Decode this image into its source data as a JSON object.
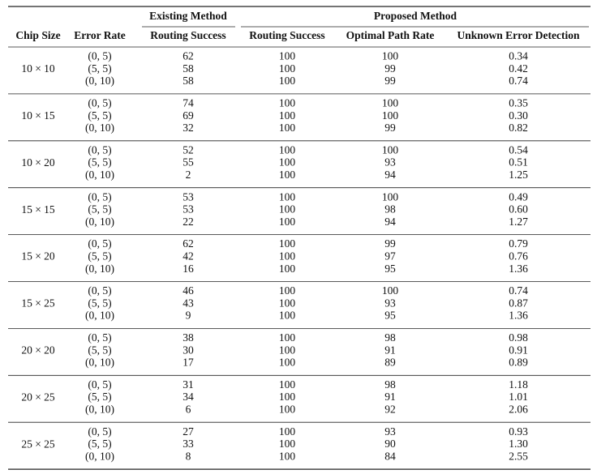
{
  "header": {
    "chip_size": "Chip Size",
    "error_rate": "Error Rate",
    "existing_method": "Existing Method",
    "proposed_method": "Proposed Method",
    "columns": [
      "Routing Success",
      "Routing Success",
      "Optimal Path Rate",
      "Unknown Error Detection"
    ]
  },
  "groups": [
    {
      "chip_size": "10 × 10",
      "rows": [
        [
          "(0, 5)",
          "62",
          "100",
          "100",
          "0.34"
        ],
        [
          "(5, 5)",
          "58",
          "100",
          "99",
          "0.42"
        ],
        [
          "(0, 10)",
          "58",
          "100",
          "99",
          "0.74"
        ]
      ]
    },
    {
      "chip_size": "10 × 15",
      "rows": [
        [
          "(0, 5)",
          "74",
          "100",
          "100",
          "0.35"
        ],
        [
          "(5, 5)",
          "69",
          "100",
          "100",
          "0.30"
        ],
        [
          "(0, 10)",
          "32",
          "100",
          "99",
          "0.82"
        ]
      ]
    },
    {
      "chip_size": "10 × 20",
      "rows": [
        [
          "(0, 5)",
          "52",
          "100",
          "100",
          "0.54"
        ],
        [
          "(5, 5)",
          "55",
          "100",
          "93",
          "0.51"
        ],
        [
          "(0, 10)",
          "2",
          "100",
          "94",
          "1.25"
        ]
      ]
    },
    {
      "chip_size": "15 × 15",
      "rows": [
        [
          "(0, 5)",
          "53",
          "100",
          "100",
          "0.49"
        ],
        [
          "(5, 5)",
          "53",
          "100",
          "98",
          "0.60"
        ],
        [
          "(0, 10)",
          "22",
          "100",
          "94",
          "1.27"
        ]
      ]
    },
    {
      "chip_size": "15 × 20",
      "rows": [
        [
          "(0, 5)",
          "62",
          "100",
          "99",
          "0.79"
        ],
        [
          "(5, 5)",
          "42",
          "100",
          "97",
          "0.76"
        ],
        [
          "(0, 10)",
          "16",
          "100",
          "95",
          "1.36"
        ]
      ]
    },
    {
      "chip_size": "15 × 25",
      "rows": [
        [
          "(0, 5)",
          "46",
          "100",
          "100",
          "0.74"
        ],
        [
          "(5, 5)",
          "43",
          "100",
          "93",
          "0.87"
        ],
        [
          "(0, 10)",
          "9",
          "100",
          "95",
          "1.36"
        ]
      ]
    },
    {
      "chip_size": "20 × 20",
      "rows": [
        [
          "(0, 5)",
          "38",
          "100",
          "98",
          "0.98"
        ],
        [
          "(5, 5)",
          "30",
          "100",
          "91",
          "0.91"
        ],
        [
          "(0, 10)",
          "17",
          "100",
          "89",
          "0.89"
        ]
      ]
    },
    {
      "chip_size": "20 × 25",
      "rows": [
        [
          "(0, 5)",
          "31",
          "100",
          "98",
          "1.18"
        ],
        [
          "(5, 5)",
          "34",
          "100",
          "91",
          "1.01"
        ],
        [
          "(0, 10)",
          "6",
          "100",
          "92",
          "2.06"
        ]
      ]
    },
    {
      "chip_size": "25 × 25",
      "rows": [
        [
          "(0, 5)",
          "27",
          "100",
          "93",
          "0.93"
        ],
        [
          "(5, 5)",
          "33",
          "100",
          "90",
          "1.30"
        ],
        [
          "(0, 10)",
          "8",
          "100",
          "84",
          "2.55"
        ]
      ]
    }
  ]
}
